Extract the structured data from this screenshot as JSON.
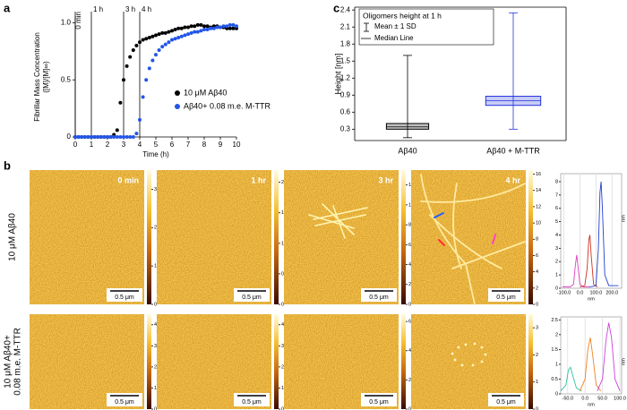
{
  "panel_labels": [
    "a",
    "b",
    "c"
  ],
  "chart_data": [
    {
      "type": "scatter",
      "xlabel": "Time (h)",
      "ylabel": [
        "Fibrillar Mass Concentration",
        "([M]/[M]∞)"
      ],
      "xlim": [
        0,
        10
      ],
      "ylim": [
        0,
        1.05
      ],
      "xticks": [
        0,
        1,
        2,
        3,
        4,
        5,
        6,
        7,
        8,
        9,
        10
      ],
      "yticks": [
        0,
        0.5,
        {
          "value": 1,
          "label": "1.0"
        }
      ],
      "vlines": [
        {
          "x": 0,
          "label": "0 min"
        },
        {
          "x": 1,
          "label": "1 h"
        },
        {
          "x": 3,
          "label": "3 h"
        },
        {
          "x": 4,
          "label": "4 h"
        }
      ],
      "x": [
        0,
        0.2,
        0.4,
        0.6,
        0.8,
        1,
        1.2,
        1.4,
        1.6,
        1.8,
        2,
        2.2,
        2.4,
        2.6,
        2.8,
        3,
        3.2,
        3.4,
        3.6,
        3.8,
        4,
        4.2,
        4.4,
        4.6,
        4.8,
        5,
        5.2,
        5.4,
        5.6,
        5.8,
        6,
        6.2,
        6.4,
        6.6,
        6.8,
        7,
        7.2,
        7.4,
        7.6,
        7.8,
        8,
        8.2,
        8.4,
        8.6,
        8.8,
        9,
        9.2,
        9.4,
        9.6,
        9.8,
        10
      ],
      "series": [
        {
          "name": "10 μM Aβ40",
          "color": "#000000",
          "values": [
            0,
            0,
            0,
            0,
            0,
            0,
            0,
            0,
            0,
            0,
            0,
            0,
            0.02,
            0.06,
            0.3,
            0.5,
            0.62,
            0.7,
            0.76,
            0.8,
            0.83,
            0.85,
            0.86,
            0.87,
            0.88,
            0.89,
            0.9,
            0.91,
            0.91,
            0.92,
            0.93,
            0.94,
            0.95,
            0.95,
            0.96,
            0.96,
            0.97,
            0.97,
            0.98,
            0.98,
            0.97,
            0.97,
            0.96,
            0.97,
            0.97,
            0.96,
            0.96,
            0.95,
            0.95,
            0.95,
            0.95
          ]
        },
        {
          "name": "Aβ40+ 0.08 m.e. M-TTR",
          "color": "#2255e8",
          "values": [
            0,
            0,
            0,
            0,
            0,
            0,
            0,
            0,
            0,
            0,
            0,
            0,
            0,
            0,
            0,
            0,
            0,
            0,
            0,
            0.03,
            0.15,
            0.35,
            0.5,
            0.6,
            0.67,
            0.72,
            0.76,
            0.79,
            0.81,
            0.83,
            0.85,
            0.86,
            0.87,
            0.88,
            0.89,
            0.9,
            0.91,
            0.92,
            0.92,
            0.93,
            0.94,
            0.94,
            0.95,
            0.95,
            0.96,
            0.96,
            0.97,
            0.97,
            0.98,
            0.98,
            0.97
          ]
        }
      ]
    },
    {
      "type": "box",
      "ylabel": "Height [nm]",
      "legend_title": "Oligomers height at 1 h",
      "legend_labels": [
        "Mean ± 1 SD",
        "Median Line"
      ],
      "categories": [
        "Aβ40",
        "Aβ40 + M-TTR"
      ],
      "colors": [
        "#000000",
        "#2233dd"
      ],
      "ylim": [
        0.1,
        2.45
      ],
      "yticks": [
        0.3,
        0.6,
        0.9,
        1.2,
        1.5,
        1.8,
        2.1,
        2.4
      ],
      "boxes": [
        {
          "low": 0.15,
          "q1": 0.3,
          "median": 0.34,
          "q3": 0.4,
          "high": 1.6
        },
        {
          "low": 0.3,
          "q1": 0.72,
          "median": 0.8,
          "q3": 0.88,
          "high": 2.35
        }
      ]
    },
    {
      "type": "line",
      "xlabel": "nm",
      "ylabel": "nm",
      "xlim": [
        -120,
        260
      ],
      "ylim": [
        0,
        8.6
      ],
      "xticks": [
        {
          "value": -100,
          "label": "-100.0"
        },
        {
          "value": 0,
          "label": "0.0"
        },
        {
          "value": 100,
          "label": "100.0"
        },
        {
          "value": 200,
          "label": "200.0"
        }
      ],
      "yticks": [
        0,
        1,
        2,
        3,
        4,
        5,
        6,
        7,
        8
      ],
      "series": [
        {
          "color": "#e040c0",
          "x": [
            -110,
            -60,
            -40,
            -28,
            -20,
            -12,
            0,
            20,
            60
          ],
          "values": [
            0.1,
            0.1,
            0.3,
            1.8,
            2.5,
            1.6,
            0.3,
            0.1,
            0.1
          ]
        },
        {
          "color": "#d03020",
          "x": [
            0,
            30,
            45,
            55,
            62,
            70,
            85,
            110
          ],
          "values": [
            0.1,
            0.2,
            1.5,
            3.6,
            4,
            2.5,
            0.3,
            0.1
          ]
        },
        {
          "color": "#2040d0",
          "x": [
            60,
            100,
            115,
            125,
            132,
            140,
            155,
            180,
            240
          ],
          "values": [
            0.1,
            0.2,
            3,
            7.2,
            8,
            6,
            1,
            0.2,
            0.2
          ]
        }
      ]
    },
    {
      "type": "line",
      "xlabel": "nm",
      "ylabel": "nm",
      "xlim": [
        -70,
        105
      ],
      "ylim": [
        0,
        2.6
      ],
      "xticks": [
        {
          "value": -50,
          "label": "-50.0"
        },
        {
          "value": 0,
          "label": "0.0"
        },
        {
          "value": 50,
          "label": "50.0"
        },
        {
          "value": 100,
          "label": "100.0"
        }
      ],
      "yticks": [
        0,
        0.5,
        1,
        1.5,
        2,
        2.5
      ],
      "series": [
        {
          "color": "#30c0a0",
          "x": [
            -70,
            -55,
            -48,
            -42,
            -35,
            -25,
            -10
          ],
          "values": [
            0.1,
            0.3,
            0.8,
            0.9,
            0.6,
            0.2,
            0.1
          ]
        },
        {
          "color": "#f08020",
          "x": [
            -15,
            0,
            8,
            15,
            22,
            32,
            45
          ],
          "values": [
            0.1,
            0.5,
            1.5,
            1.9,
            1.3,
            0.3,
            0.1
          ]
        },
        {
          "color": "#d040e0",
          "x": [
            35,
            50,
            60,
            68,
            76,
            86,
            100
          ],
          "values": [
            0.1,
            0.5,
            1.8,
            2.4,
            1.9,
            0.5,
            0.1
          ]
        }
      ]
    }
  ],
  "afm": {
    "row_labels": [
      [
        "10 μM Aβ40"
      ],
      [
        "10 μM Aβ40+",
        "0.08 m.e. M-TTR"
      ]
    ],
    "time_labels": [
      "0 min",
      "1 hr",
      "3 hr",
      "4 hr"
    ],
    "scale_label": "0.5 μm",
    "images": [
      [
        {
          "colorbar_lim": [
            0,
            3.5
          ],
          "colorbar_ticks": [
            0,
            1,
            2,
            3
          ]
        },
        {
          "colorbar_lim": [
            0,
            2.2
          ],
          "colorbar_ticks": [
            0,
            0.5,
            1,
            1.5,
            2
          ]
        },
        {
          "colorbar_lim": [
            0,
            13.5
          ],
          "colorbar_ticks": [
            0,
            2,
            4,
            6,
            8,
            10,
            12
          ]
        },
        {
          "colorbar_lim": [
            0,
            16.5
          ],
          "colorbar_ticks": [
            0,
            2,
            4,
            6,
            8,
            10,
            12,
            14,
            16
          ]
        }
      ],
      [
        {
          "colorbar_lim": [
            0,
            4.5
          ],
          "colorbar_ticks": [
            0,
            1,
            2,
            3,
            4
          ]
        },
        {
          "colorbar_lim": [
            0,
            4.5
          ],
          "colorbar_ticks": [
            0,
            1,
            2,
            3,
            4
          ]
        },
        {
          "colorbar_lim": [
            0,
            6.5
          ],
          "colorbar_ticks": [
            0,
            2,
            4,
            6
          ]
        },
        {
          "colorbar_lim": [
            0,
            3.5
          ],
          "colorbar_ticks": [
            0,
            1,
            2,
            3
          ]
        }
      ]
    ]
  }
}
